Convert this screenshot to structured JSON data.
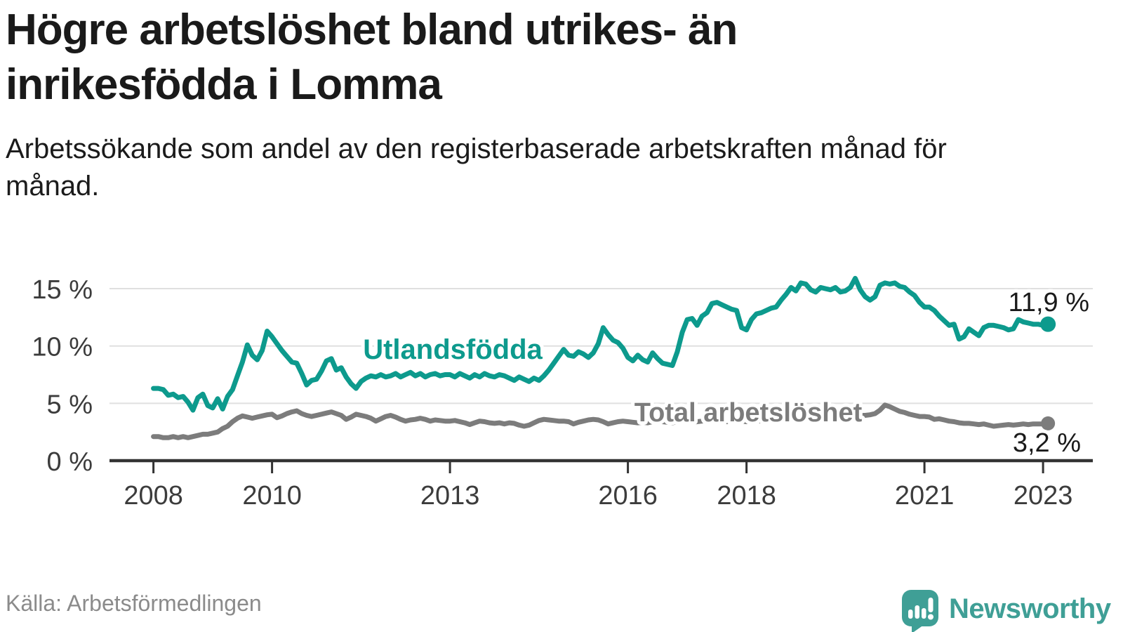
{
  "header": {
    "title": "Högre arbetslöshet bland utrikes- än inrikesfödda i Lomma",
    "subtitle": "Arbetssökande som andel av den registerbaserade arbetskraften månad för månad."
  },
  "footer": {
    "source": "Källa: Arbetsförmedlingen",
    "brand": "Newsworthy",
    "brand_color": "#3f9f96"
  },
  "chart_data": {
    "type": "line",
    "title": "Högre arbetslöshet bland utrikes- än inrikesfödda i Lomma",
    "x_unit": "month",
    "start": "2008-01",
    "end": "2023-02",
    "xticks": [
      2008,
      2010,
      2013,
      2016,
      2018,
      2021,
      2023
    ],
    "yticks": [
      {
        "value": 0,
        "label": "0 %"
      },
      {
        "value": 5,
        "label": "5 %"
      },
      {
        "value": 10,
        "label": "10 %"
      },
      {
        "value": 15,
        "label": "15 %"
      }
    ],
    "ylim": [
      0,
      16.5
    ],
    "grid": "horizontal",
    "legend_position": "inline-labels",
    "colors": {
      "grid": "#e0e0e0",
      "axis": "#333333",
      "axis_text": "#3c3c3c",
      "value_label_text": "#1a1a1a"
    },
    "series": [
      {
        "name": "Utlandsfödda",
        "color": "#0d9a8d",
        "end_label": "11,9 %",
        "end_value": 11.9,
        "values": [
          6.3,
          6.3,
          6.2,
          5.7,
          5.8,
          5.5,
          5.6,
          5.1,
          4.4,
          5.5,
          5.8,
          4.8,
          4.6,
          5.4,
          4.5,
          5.6,
          6.2,
          7.4,
          8.6,
          10.1,
          9.2,
          8.8,
          9.6,
          11.3,
          10.8,
          10.2,
          9.6,
          9.1,
          8.6,
          8.5,
          7.6,
          6.6,
          7.0,
          7.1,
          7.8,
          8.7,
          8.9,
          7.9,
          8.1,
          7.3,
          6.7,
          6.3,
          6.9,
          7.2,
          7.4,
          7.3,
          7.5,
          7.3,
          7.4,
          7.6,
          7.3,
          7.5,
          7.7,
          7.4,
          7.6,
          7.3,
          7.5,
          7.6,
          7.4,
          7.5,
          7.5,
          7.3,
          7.6,
          7.4,
          7.2,
          7.5,
          7.3,
          7.6,
          7.4,
          7.3,
          7.5,
          7.4,
          7.2,
          7.0,
          7.3,
          7.1,
          6.9,
          7.2,
          7.0,
          7.4,
          7.9,
          8.5,
          9.1,
          9.7,
          9.2,
          9.1,
          9.5,
          9.3,
          9.0,
          9.4,
          10.2,
          11.6,
          11.0,
          10.5,
          10.3,
          9.8,
          9.0,
          8.7,
          9.2,
          8.8,
          8.6,
          9.4,
          8.9,
          8.5,
          8.4,
          8.3,
          9.5,
          11.2,
          12.3,
          12.4,
          11.8,
          12.6,
          12.9,
          13.7,
          13.8,
          13.6,
          13.4,
          13.2,
          13.1,
          11.6,
          11.4,
          12.3,
          12.8,
          12.9,
          13.1,
          13.3,
          13.4,
          14.0,
          14.5,
          15.1,
          14.8,
          15.5,
          15.4,
          14.9,
          14.7,
          15.1,
          15.0,
          14.9,
          15.1,
          14.7,
          14.8,
          15.1,
          15.9,
          14.9,
          14.3,
          14.0,
          14.3,
          15.3,
          15.5,
          15.4,
          15.5,
          15.2,
          15.1,
          14.7,
          14.4,
          13.8,
          13.4,
          13.4,
          13.1,
          12.6,
          12.2,
          11.8,
          11.9,
          10.6,
          10.8,
          11.5,
          11.2,
          10.9,
          11.6,
          11.8,
          11.8,
          11.7,
          11.6,
          11.4,
          11.5,
          12.3,
          12.1,
          12.0,
          11.9,
          11.9,
          11.8,
          11.9
        ]
      },
      {
        "name": "Total arbetslöshet",
        "color": "#7c7c7c",
        "end_label": "3,2 %",
        "end_value": 3.2,
        "values": [
          2.1,
          2.1,
          2.0,
          2.0,
          2.1,
          2.0,
          2.1,
          2.0,
          2.1,
          2.2,
          2.3,
          2.3,
          2.4,
          2.5,
          2.8,
          3.0,
          3.4,
          3.7,
          3.9,
          3.8,
          3.7,
          3.8,
          3.9,
          4.0,
          4.05,
          3.75,
          3.9,
          4.1,
          4.25,
          4.35,
          4.1,
          3.95,
          3.85,
          3.95,
          4.05,
          4.15,
          4.25,
          4.1,
          3.95,
          3.6,
          3.8,
          4.05,
          3.95,
          3.85,
          3.7,
          3.45,
          3.65,
          3.85,
          3.95,
          3.8,
          3.6,
          3.45,
          3.55,
          3.6,
          3.7,
          3.6,
          3.45,
          3.55,
          3.5,
          3.45,
          3.45,
          3.5,
          3.4,
          3.3,
          3.15,
          3.3,
          3.45,
          3.4,
          3.3,
          3.25,
          3.3,
          3.2,
          3.3,
          3.25,
          3.1,
          3.0,
          3.1,
          3.3,
          3.5,
          3.6,
          3.55,
          3.5,
          3.45,
          3.45,
          3.4,
          3.2,
          3.35,
          3.45,
          3.55,
          3.6,
          3.55,
          3.4,
          3.2,
          3.3,
          3.4,
          3.45,
          3.4,
          3.35,
          3.3,
          3.35,
          3.3,
          3.4,
          3.45,
          3.4,
          3.35,
          3.3,
          3.4,
          3.45,
          3.4,
          3.35,
          3.4,
          3.45,
          3.5,
          3.45,
          3.5,
          3.45,
          3.4,
          3.45,
          3.5,
          3.45,
          3.4,
          3.45,
          3.5,
          3.45,
          3.5,
          3.55,
          3.5,
          3.55,
          3.6,
          3.55,
          3.6,
          3.65,
          3.6,
          3.65,
          3.7,
          3.65,
          3.7,
          3.75,
          3.8,
          3.75,
          3.8,
          3.85,
          3.9,
          3.95,
          3.95,
          4.0,
          4.1,
          4.4,
          4.85,
          4.7,
          4.5,
          4.3,
          4.2,
          4.05,
          3.95,
          3.85,
          3.85,
          3.8,
          3.6,
          3.65,
          3.55,
          3.45,
          3.4,
          3.3,
          3.25,
          3.25,
          3.2,
          3.15,
          3.2,
          3.1,
          3.0,
          3.05,
          3.1,
          3.15,
          3.1,
          3.15,
          3.2,
          3.15,
          3.2,
          3.2,
          3.2,
          3.25
        ]
      }
    ]
  }
}
